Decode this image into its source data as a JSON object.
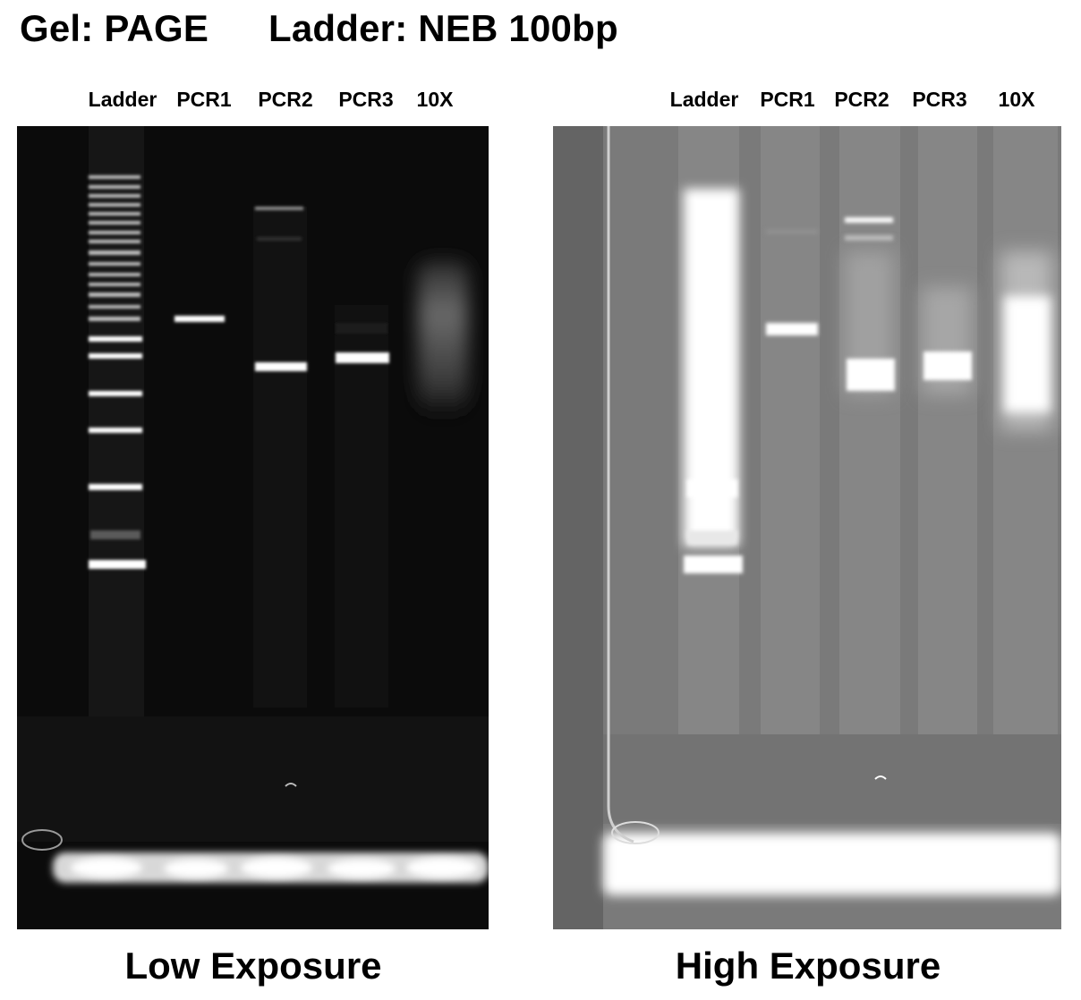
{
  "header": {
    "gel_label": "Gel: PAGE",
    "ladder_label": "Ladder: NEB 100bp"
  },
  "panels": [
    {
      "id": "low",
      "caption": "Low Exposure",
      "lanes": [
        "Ladder",
        "PCR1",
        "PCR2",
        "PCR3",
        "10X"
      ]
    },
    {
      "id": "high",
      "caption": "High Exposure",
      "lanes": [
        "Ladder",
        "PCR1",
        "PCR2",
        "PCR3",
        "10X"
      ]
    }
  ],
  "colors": {
    "low_background": "#0b0b0b",
    "high_background": "#6b6b6b",
    "band": "#ffffff"
  }
}
